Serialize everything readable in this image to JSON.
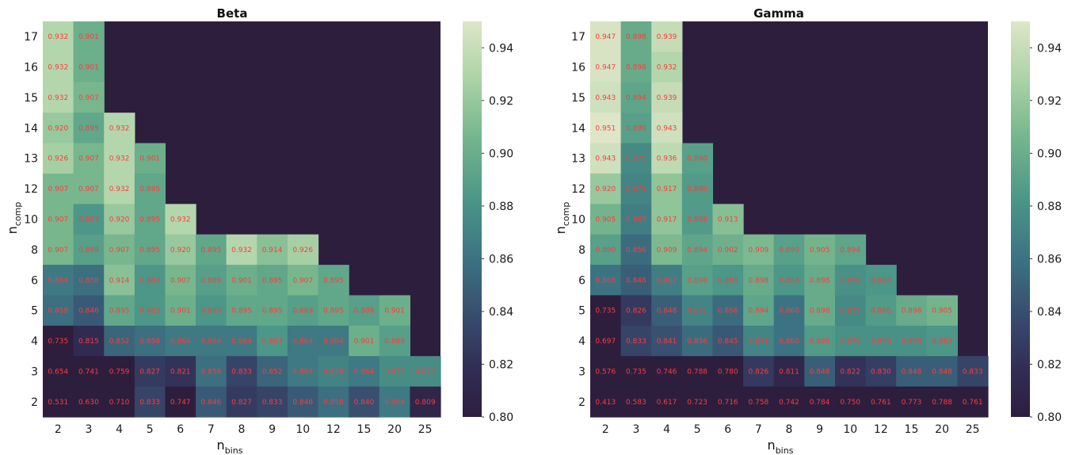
{
  "chart_data": [
    {
      "type": "heatmap",
      "title": "Beta",
      "xlabel_main": "n",
      "xlabel_sub": "bins",
      "ylabel_main": "n",
      "ylabel_sub": "comp",
      "x_categories": [
        "2",
        "3",
        "4",
        "5",
        "6",
        "7",
        "8",
        "9",
        "10",
        "12",
        "15",
        "20",
        "25"
      ],
      "y_categories": [
        "17",
        "16",
        "15",
        "14",
        "13",
        "12",
        "10",
        "8",
        "6",
        "5",
        "4",
        "3",
        "2"
      ],
      "values": [
        [
          "0.932",
          "0.901",
          null,
          null,
          null,
          null,
          null,
          null,
          null,
          null,
          null,
          null,
          null
        ],
        [
          "0.932",
          "0.901",
          null,
          null,
          null,
          null,
          null,
          null,
          null,
          null,
          null,
          null,
          null
        ],
        [
          "0.932",
          "0.907",
          null,
          null,
          null,
          null,
          null,
          null,
          null,
          null,
          null,
          null,
          null
        ],
        [
          "0.920",
          "0.895",
          "0.932",
          null,
          null,
          null,
          null,
          null,
          null,
          null,
          null,
          null,
          null
        ],
        [
          "0.926",
          "0.907",
          "0.932",
          "0.901",
          null,
          null,
          null,
          null,
          null,
          null,
          null,
          null,
          null
        ],
        [
          "0.907",
          "0.907",
          "0.932",
          "0.895",
          null,
          null,
          null,
          null,
          null,
          null,
          null,
          null,
          null
        ],
        [
          "0.907",
          "0.883",
          "0.920",
          "0.895",
          "0.932",
          null,
          null,
          null,
          null,
          null,
          null,
          null,
          null
        ],
        [
          "0.907",
          "0.889",
          "0.907",
          "0.895",
          "0.920",
          "0.895",
          "0.932",
          "0.914",
          "0.926",
          null,
          null,
          null,
          null
        ],
        [
          "0.864",
          "0.858",
          "0.914",
          "0.883",
          "0.907",
          "0.889",
          "0.901",
          "0.895",
          "0.907",
          "0.895",
          null,
          null,
          null
        ],
        [
          "0.858",
          "0.846",
          "0.895",
          "0.883",
          "0.901",
          "0.883",
          "0.895",
          "0.895",
          "0.889",
          "0.895",
          "0.889",
          "0.901",
          null
        ],
        [
          "0.735",
          "0.815",
          "0.852",
          "0.858",
          "0.864",
          "0.864",
          "0.864",
          "0.883",
          "0.864",
          "0.864",
          "0.901",
          "0.889",
          null
        ],
        [
          "0.654",
          "0.741",
          "0.759",
          "0.827",
          "0.821",
          "0.858",
          "0.833",
          "0.852",
          "0.864",
          "0.870",
          "0.864",
          "0.877",
          "0.877"
        ],
        [
          "0.531",
          "0.630",
          "0.710",
          "0.833",
          "0.747",
          "0.846",
          "0.827",
          "0.833",
          "0.846",
          "0.858",
          "0.840",
          "0.864",
          "0.809"
        ]
      ],
      "colorbar": {
        "min": 0.8,
        "max": 0.95,
        "ticks": [
          "0.80",
          "0.82",
          "0.84",
          "0.86",
          "0.88",
          "0.90",
          "0.92",
          "0.94"
        ]
      },
      "empty_color": "#2d1e3e",
      "label_color": "#ff3b3b"
    },
    {
      "type": "heatmap",
      "title": "Gamma",
      "xlabel_main": "n",
      "xlabel_sub": "bins",
      "ylabel_main": "n",
      "ylabel_sub": "comp",
      "x_categories": [
        "2",
        "3",
        "4",
        "5",
        "6",
        "7",
        "8",
        "9",
        "10",
        "12",
        "15",
        "20",
        "25"
      ],
      "y_categories": [
        "17",
        "16",
        "15",
        "14",
        "13",
        "12",
        "10",
        "8",
        "6",
        "5",
        "4",
        "3",
        "2"
      ],
      "values": [
        [
          "0.947",
          "0.898",
          "0.939",
          null,
          null,
          null,
          null,
          null,
          null,
          null,
          null,
          null,
          null
        ],
        [
          "0.947",
          "0.898",
          "0.932",
          null,
          null,
          null,
          null,
          null,
          null,
          null,
          null,
          null,
          null
        ],
        [
          "0.943",
          "0.894",
          "0.939",
          null,
          null,
          null,
          null,
          null,
          null,
          null,
          null,
          null,
          null
        ],
        [
          "0.951",
          "0.890",
          "0.943",
          null,
          null,
          null,
          null,
          null,
          null,
          null,
          null,
          null,
          null
        ],
        [
          "0.943",
          "0.875",
          "0.936",
          "0.890",
          null,
          null,
          null,
          null,
          null,
          null,
          null,
          null,
          null
        ],
        [
          "0.920",
          "0.871",
          "0.917",
          "0.886",
          null,
          null,
          null,
          null,
          null,
          null,
          null,
          null,
          null
        ],
        [
          "0.905",
          "0.867",
          "0.917",
          "0.886",
          "0.913",
          null,
          null,
          null,
          null,
          null,
          null,
          null,
          null
        ],
        [
          "0.890",
          "0.856",
          "0.909",
          "0.894",
          "0.902",
          "0.909",
          "0.890",
          "0.905",
          "0.894",
          null,
          null,
          null,
          null
        ],
        [
          "0.860",
          "0.848",
          "0.867",
          "0.890",
          "0.883",
          "0.898",
          "0.883",
          "0.898",
          "0.879",
          "0.883",
          null,
          null,
          null
        ],
        [
          "0.735",
          "0.826",
          "0.848",
          "0.871",
          "0.856",
          "0.894",
          "0.860",
          "0.898",
          "0.875",
          "0.886",
          "0.898",
          "0.905",
          null
        ],
        [
          "0.697",
          "0.833",
          "0.841",
          "0.856",
          "0.845",
          "0.871",
          "0.860",
          "0.886",
          "0.879",
          "0.879",
          "0.879",
          "0.883",
          null
        ],
        [
          "0.576",
          "0.735",
          "0.746",
          "0.788",
          "0.780",
          "0.826",
          "0.811",
          "0.848",
          "0.822",
          "0.830",
          "0.848",
          "0.848",
          "0.833"
        ],
        [
          "0.413",
          "0.583",
          "0.617",
          "0.723",
          "0.716",
          "0.758",
          "0.742",
          "0.784",
          "0.750",
          "0.761",
          "0.773",
          "0.788",
          "0.761"
        ]
      ],
      "colorbar": {
        "min": 0.8,
        "max": 0.95,
        "ticks": [
          "0.80",
          "0.82",
          "0.84",
          "0.86",
          "0.88",
          "0.90",
          "0.92",
          "0.94"
        ]
      },
      "empty_color": "#2d1e3e",
      "label_color": "#ff3b3b"
    }
  ]
}
